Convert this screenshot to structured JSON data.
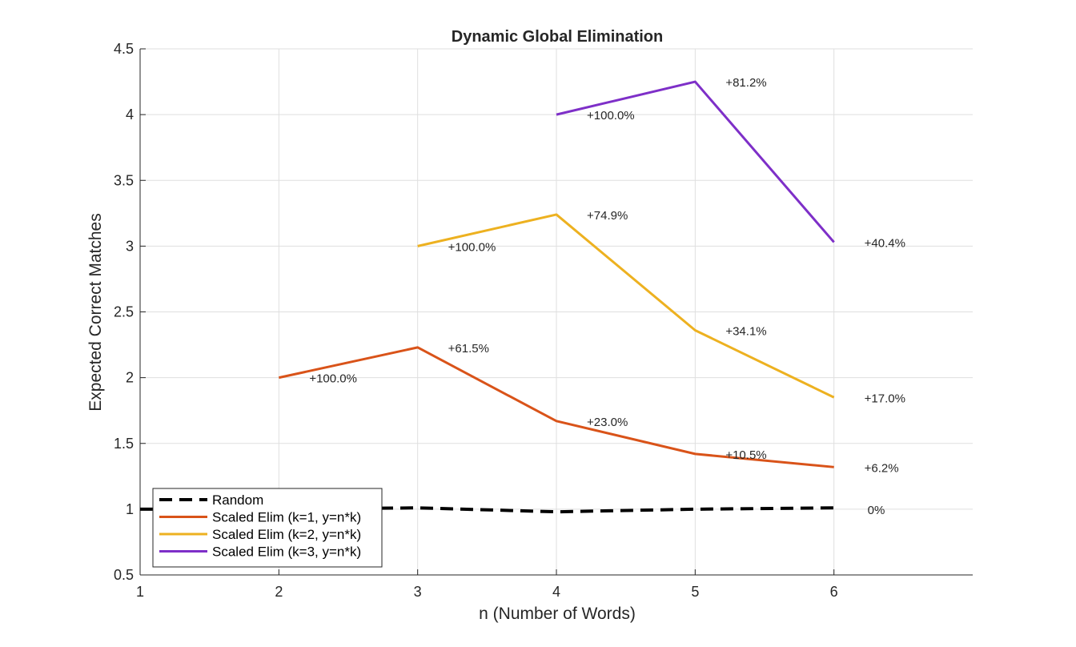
{
  "chart_data": {
    "type": "line",
    "title": "Dynamic Global Elimination",
    "xlabel": "n (Number of Words)",
    "ylabel": "Expected Correct Matches",
    "xlim": [
      1,
      7
    ],
    "ylim": [
      0.5,
      4.5
    ],
    "xticks": [
      1,
      2,
      3,
      4,
      5,
      6
    ],
    "yticks": [
      0.5,
      1,
      1.5,
      2,
      2.5,
      3,
      3.5,
      4,
      4.5
    ],
    "xtick_labels": [
      "1",
      "2",
      "3",
      "4",
      "5",
      "6"
    ],
    "ytick_labels": [
      "0.5",
      "1",
      "1.5",
      "2",
      "2.5",
      "3",
      "3.5",
      "4",
      "4.5"
    ],
    "grid": true,
    "legend_location": "bottom-left",
    "series": [
      {
        "name": "Random",
        "color": "#000000",
        "style": "dashed",
        "x": [
          1,
          2,
          3,
          4,
          5,
          6
        ],
        "y": [
          1.0,
          1.0,
          1.01,
          0.98,
          1.0,
          1.01
        ]
      },
      {
        "name": "Scaled Elim (k=1, y=n*k)",
        "color": "#D95319",
        "style": "solid",
        "x": [
          2,
          3,
          4,
          5,
          6
        ],
        "y": [
          2.0,
          2.23,
          1.67,
          1.42,
          1.32
        ],
        "annotations": [
          "+100.0%",
          "+61.5%",
          "+23.0%",
          "+10.5%",
          "+6.2%"
        ]
      },
      {
        "name": "Scaled Elim (k=2, y=n*k)",
        "color": "#EDB120",
        "style": "solid",
        "x": [
          3,
          4,
          5,
          6
        ],
        "y": [
          3.0,
          3.24,
          2.36,
          1.85
        ],
        "annotations": [
          "+100.0%",
          "+74.9%",
          "+34.1%",
          "+17.0%"
        ]
      },
      {
        "name": "Scaled Elim (k=3, y=n*k)",
        "color": "#7E2FC8",
        "style": "solid",
        "x": [
          4,
          5,
          6
        ],
        "y": [
          4.0,
          4.25,
          3.03
        ],
        "annotations": [
          "+100.0%",
          "+81.2%",
          "+40.4%"
        ]
      }
    ],
    "extra_annotations": [
      {
        "text": "0%",
        "x": 6,
        "y": 1.0
      }
    ]
  }
}
